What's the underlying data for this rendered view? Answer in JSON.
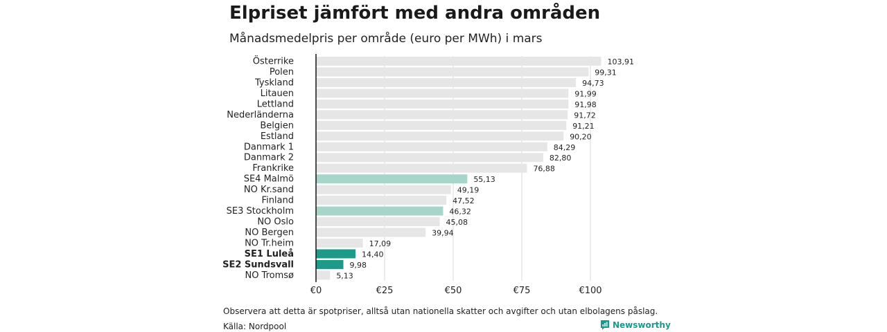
{
  "header": {
    "title": "Elpriset jämfört med andra områden",
    "subtitle": "Månadsmedelpris per område (euro per MWh) i mars"
  },
  "footer": {
    "note": "Observera att detta är spotpriser, alltså utan nationella skatter och avgifter och utan elbolagens påslag.",
    "source": "Källa: Nordpool",
    "brand": "Newsworthy"
  },
  "colors": {
    "bar_default": "#e6e6e6",
    "bar_highlight": "#a8d5ca",
    "bar_emphasis": "#1e9a89",
    "axis": "#111111",
    "grid": "#d9d9d9",
    "brand": "#1a9a8a"
  },
  "chart_data": {
    "type": "bar",
    "orientation": "horizontal",
    "title": "Elpriset jämfört med andra områden",
    "subtitle": "Månadsmedelpris per område (euro per MWh) i mars",
    "xlim": [
      0,
      104
    ],
    "xticks": [
      0,
      25,
      50,
      75,
      100
    ],
    "xtick_labels": [
      "€0",
      "€25",
      "€50",
      "€75",
      "€100"
    ],
    "grid": true,
    "categories": [
      "Österrike",
      "Polen",
      "Tyskland",
      "Litauen",
      "Lettland",
      "Nederländerna",
      "Belgien",
      "Estland",
      "Danmark 1",
      "Danmark 2",
      "Frankrike",
      "SE4 Malmö",
      "NO Kr.sand",
      "Finland",
      "SE3 Stockholm",
      "NO Oslo",
      "NO Bergen",
      "NO Tr.heim",
      "SE1 Luleå",
      "SE2 Sundsvall",
      "NO Tromsø"
    ],
    "values": [
      103.91,
      99.31,
      94.73,
      91.99,
      91.98,
      91.72,
      91.21,
      90.2,
      84.29,
      82.8,
      76.88,
      55.13,
      49.19,
      47.52,
      46.32,
      45.08,
      39.94,
      17.09,
      14.4,
      9.98,
      5.13
    ],
    "value_labels": [
      "103,91",
      "99,31",
      "94,73",
      "91,99",
      "91,98",
      "91,72",
      "91,21",
      "90,20",
      "84,29",
      "82,80",
      "76,88",
      "55,13",
      "49,19",
      "47,52",
      "46,32",
      "45,08",
      "39,94",
      "17,09",
      "14,40",
      "9,98",
      "5,13"
    ],
    "highlight": [
      "default",
      "default",
      "default",
      "default",
      "default",
      "default",
      "default",
      "default",
      "default",
      "default",
      "default",
      "highlight",
      "default",
      "default",
      "highlight",
      "default",
      "default",
      "default",
      "emphasis",
      "emphasis",
      "default"
    ]
  }
}
